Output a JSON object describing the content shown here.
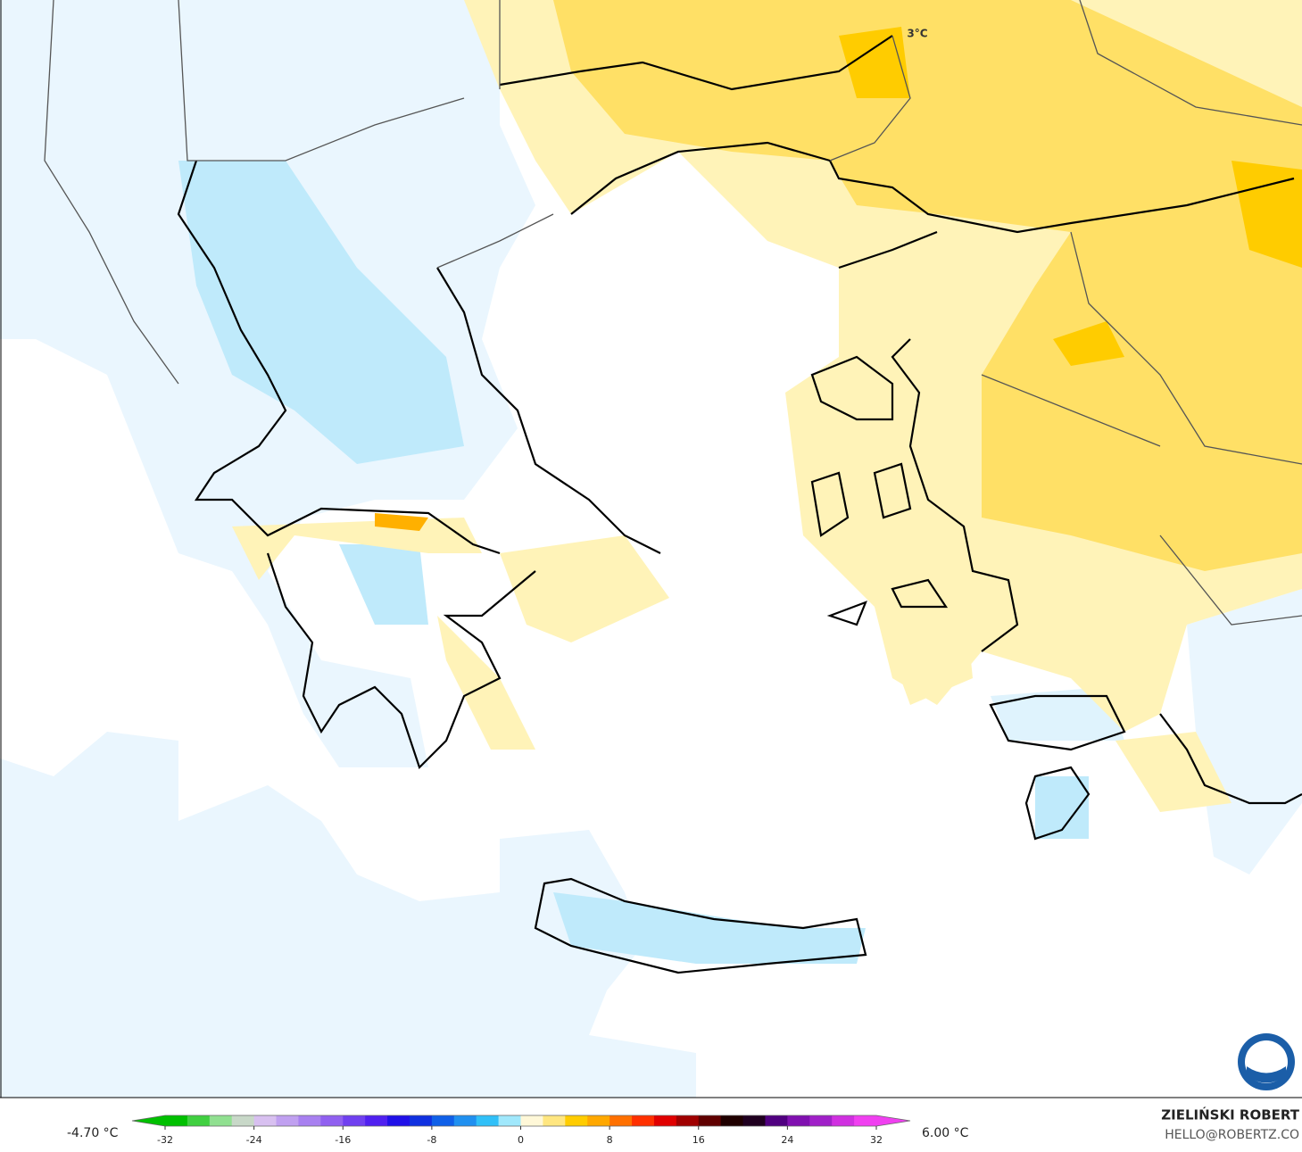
{
  "map": {
    "annotation": "3°C"
  },
  "colorbar": {
    "min_label": "-4.70 °C",
    "max_label": "6.00 °C",
    "lim": [
      -32,
      32
    ],
    "ticks": [
      -32,
      -24,
      -16,
      -8,
      0,
      8,
      16,
      24,
      32
    ],
    "colors": [
      "#00c000",
      "#40d040",
      "#90e090",
      "#c8d8c8",
      "#d8c0f0",
      "#c0a0f0",
      "#a880f0",
      "#9060f0",
      "#7040f0",
      "#5020f0",
      "#2010e8",
      "#1030e0",
      "#1060e8",
      "#2090f0",
      "#30c0f8",
      "#a0e8fc",
      "#fff8d8",
      "#ffe680",
      "#ffcc00",
      "#ffa800",
      "#ff7000",
      "#ff3000",
      "#e00000",
      "#a00000",
      "#600000",
      "#200000",
      "#200020",
      "#500080",
      "#8010b0",
      "#a020c8",
      "#d030e0",
      "#f040f0"
    ]
  },
  "credits": {
    "name": "ZIELIŃSKI ROBERT",
    "email": "HELLO@ROBERTZ.CO"
  }
}
